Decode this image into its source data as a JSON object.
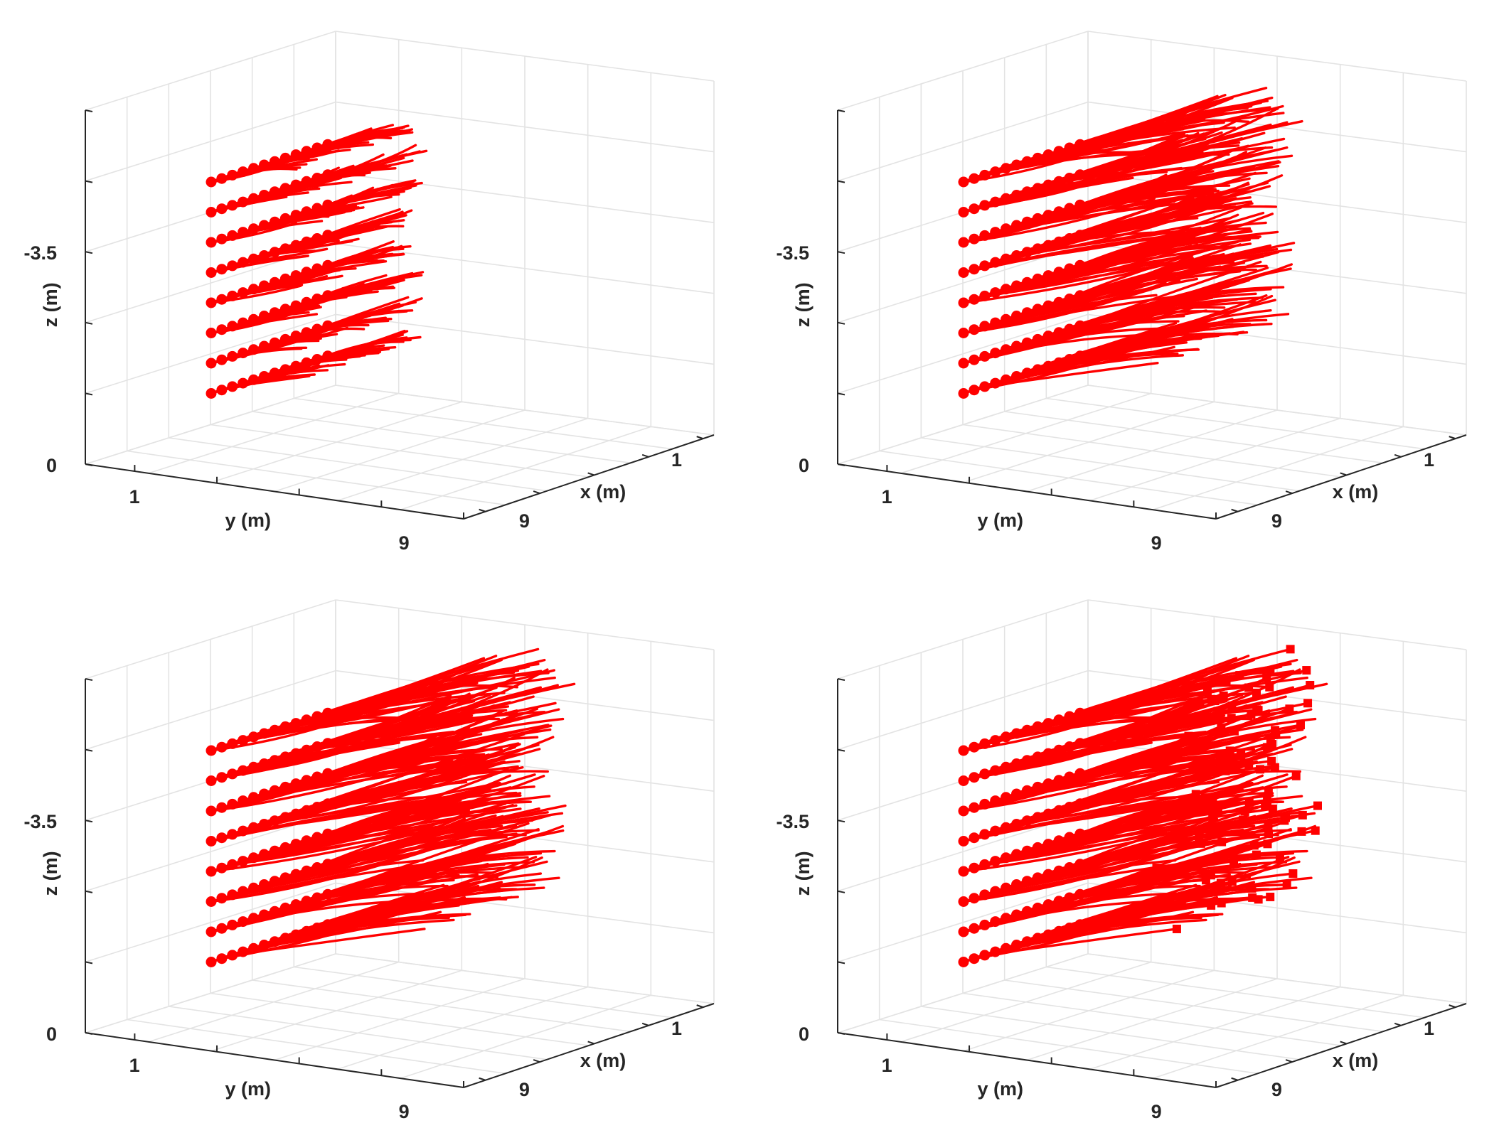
{
  "chart_data": [
    {
      "type": "line",
      "panel": "top-left",
      "view": "3d",
      "xlabel": "x (m)",
      "ylabel": "y (m)",
      "zlabel": "z (m)",
      "xticks": [
        "1",
        "9"
      ],
      "yticks": [
        "1",
        "9"
      ],
      "zticks": [
        "0",
        "-3.5"
      ],
      "grid": true,
      "series_color": "#ff0000",
      "layers": 8,
      "tracks_per_layer": 12,
      "progress": 0.4,
      "end_markers": false
    },
    {
      "type": "line",
      "panel": "top-right",
      "view": "3d",
      "xlabel": "x (m)",
      "ylabel": "y (m)",
      "zlabel": "z (m)",
      "xticks": [
        "1",
        "9"
      ],
      "yticks": [
        "1",
        "9"
      ],
      "zticks": [
        "0",
        "-3.5"
      ],
      "grid": true,
      "series_color": "#ff0000",
      "layers": 8,
      "tracks_per_layer": 12,
      "progress": 0.9,
      "end_markers": false
    },
    {
      "type": "line",
      "panel": "bottom-left",
      "view": "3d",
      "xlabel": "x (m)",
      "ylabel": "y (m)",
      "zlabel": "z (m)",
      "xticks": [
        "1",
        "9"
      ],
      "yticks": [
        "1",
        "9"
      ],
      "zticks": [
        "0",
        "-3.5"
      ],
      "grid": true,
      "series_color": "#ff0000",
      "layers": 8,
      "tracks_per_layer": 12,
      "progress": 1.0,
      "end_markers": false
    },
    {
      "type": "line",
      "panel": "bottom-right",
      "view": "3d",
      "xlabel": "x (m)",
      "ylabel": "y (m)",
      "zlabel": "z (m)",
      "xticks": [
        "1",
        "9"
      ],
      "yticks": [
        "1",
        "9"
      ],
      "zticks": [
        "0",
        "-3.5"
      ],
      "grid": true,
      "series_color": "#ff0000",
      "layers": 8,
      "tracks_per_layer": 12,
      "progress": 1.0,
      "end_markers": true
    }
  ]
}
